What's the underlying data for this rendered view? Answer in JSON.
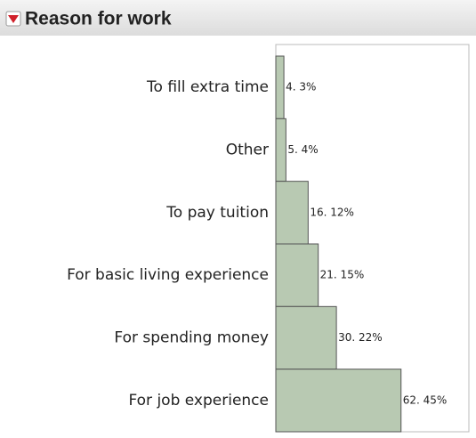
{
  "header": {
    "title": "Reason for work"
  },
  "chart_data": {
    "type": "bar",
    "orientation": "horizontal",
    "categories": [
      "To fill extra time",
      "Other",
      "To pay tuition",
      "For basic living experience",
      "For spending money",
      "For job experience"
    ],
    "values": [
      4,
      5,
      16,
      21,
      30,
      62
    ],
    "value_labels": [
      "4. 3%",
      "5. 4%",
      "16. 12%",
      "21. 15%",
      "30. 22%",
      "62. 45%"
    ],
    "color": "#b8c9b2"
  }
}
